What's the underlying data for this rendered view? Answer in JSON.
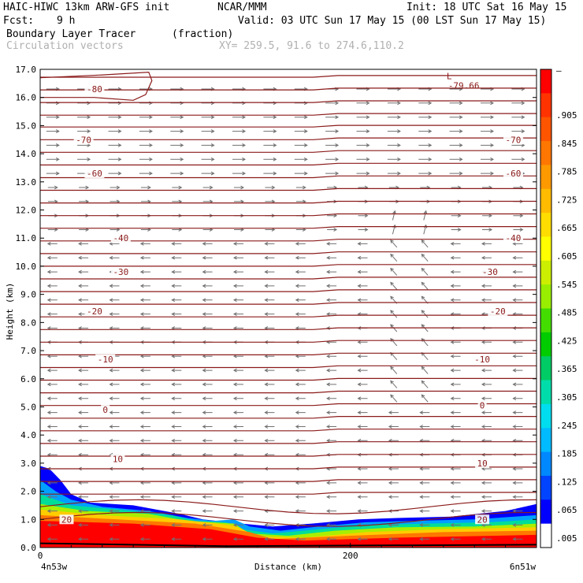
{
  "header": {
    "model": "HAIC-HIWC 13km ARW-GFS init",
    "org": "NCAR/MMM",
    "init": "Init: 18 UTC Sat 16 May 15",
    "fcst_label": "Fcst:",
    "fcst_value": "9 h",
    "valid": "Valid: 03 UTC Sun 17 May 15 (00 LST Sun 17 May 15)",
    "field1": "Boundary Layer Tracer",
    "field1_units": "(fraction)",
    "field2": "Circulation vectors",
    "xy": "XY= 259.5, 91.6 to 274.6,110.2"
  },
  "colors": {
    "contour": "#8b1a1a",
    "vector": "#707070",
    "colorbar": [
      "#ffffff",
      "#0000ff",
      "#0044ff",
      "#0088ff",
      "#00bbff",
      "#00ddee",
      "#00ddaa",
      "#00cc66",
      "#00cc00",
      "#44dd00",
      "#99ee00",
      "#ccee00",
      "#ffff00",
      "#ffdd00",
      "#ffbb00",
      "#ff9900",
      "#ff7700",
      "#ff5500",
      "#ff3300",
      "#ff0000"
    ]
  },
  "chart_data": {
    "type": "cross-section",
    "xlabel": "Distance (km)",
    "ylabel": "Height (km)",
    "x_ticks": [
      0,
      200
    ],
    "x_end_labels": {
      "left": "4n53w",
      "right": "6n51w"
    },
    "xlim": [
      0,
      320
    ],
    "ylim": [
      0,
      17
    ],
    "y_ticks": [
      "0.0",
      "1.0",
      "2.0",
      "3.0",
      "4.0",
      "5.0",
      "6.0",
      "7.0",
      "8.0",
      "9.0",
      "10.0",
      "11.0",
      "12.0",
      "13.0",
      "14.0",
      "15.0",
      "16.0",
      "17.0"
    ],
    "colorbar_labels": [
      "–",
      "",
      "",
      ".905",
      "",
      ".845",
      "",
      ".785",
      "",
      ".725",
      "",
      ".665",
      "",
      ".605",
      "",
      ".545",
      "",
      ".485",
      "",
      ".425",
      "",
      ".365",
      "",
      ".305",
      "",
      ".245",
      "",
      ".185",
      "",
      ".125",
      "",
      ".065",
      "",
      ".005"
    ],
    "colorbar_levels": [
      ".905",
      ".845",
      ".785",
      ".725",
      ".665",
      ".605",
      ".545",
      ".485",
      ".425",
      ".365",
      ".305",
      ".245",
      ".185",
      ".125",
      ".065",
      ".005"
    ],
    "temperature_contours_C": [
      {
        "label": "-80",
        "height_km": 16.3,
        "label_x_km": 35
      },
      {
        "label": "-70",
        "height_km": 14.5,
        "label_x_km": 28
      },
      {
        "label": "-70",
        "height_km": 14.5,
        "label_x_km": 305
      },
      {
        "label": "-60",
        "height_km": 13.3,
        "label_x_km": 35
      },
      {
        "label": "-60",
        "height_km": 13.3,
        "label_x_km": 305
      },
      {
        "label": "-40",
        "height_km": 11.0,
        "label_x_km": 52
      },
      {
        "label": "-40",
        "height_km": 11.0,
        "label_x_km": 305
      },
      {
        "label": "-30",
        "height_km": 9.8,
        "label_x_km": 52
      },
      {
        "label": "-30",
        "height_km": 9.8,
        "label_x_km": 290
      },
      {
        "label": "-20",
        "height_km": 8.4,
        "label_x_km": 35
      },
      {
        "label": "-20",
        "height_km": 8.4,
        "label_x_km": 295
      },
      {
        "label": "-10",
        "height_km": 6.7,
        "label_x_km": 42
      },
      {
        "label": "-10",
        "height_km": 6.7,
        "label_x_km": 285
      },
      {
        "label": "0",
        "height_km": 4.9,
        "label_x_km": 42
      },
      {
        "label": "0",
        "height_km": 5.05,
        "label_x_km": 285
      },
      {
        "label": "10",
        "height_km": 3.15,
        "label_x_km": 50
      },
      {
        "label": "10",
        "height_km": 3.0,
        "label_x_km": 285
      },
      {
        "label": "20",
        "height_km": 1.0,
        "label_x_km": 17
      },
      {
        "label": "20",
        "height_km": 1.0,
        "label_x_km": 285
      }
    ],
    "minimum_label": {
      "text": "L",
      "value": "-79.66",
      "x_km": 262,
      "height_km": 16.6
    }
  }
}
